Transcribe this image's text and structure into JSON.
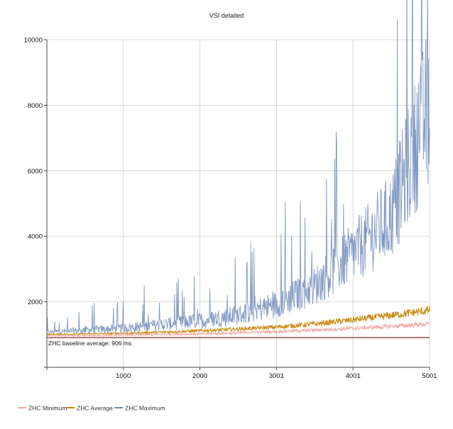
{
  "chart_data": {
    "type": "line",
    "title": "VSI detailed",
    "xlabel": "",
    "ylabel": "",
    "x_ticks": [
      "1000",
      "2000",
      "3001",
      "4001",
      "5001"
    ],
    "x_tick_values": [
      1000,
      2000,
      3001,
      4001,
      5001
    ],
    "y_ticks": [
      "2000",
      "4000",
      "6000",
      "8000",
      "10000"
    ],
    "y_tick_values": [
      2000,
      4000,
      6000,
      8000,
      10000
    ],
    "xlim": [
      1,
      5001
    ],
    "ylim": [
      0,
      10000
    ],
    "grid": true,
    "legend_position": "bottom-left",
    "series": [
      {
        "name": "ZHC Minimum",
        "color": "#f0a8a0",
        "x": [
          1,
          500,
          1000,
          1500,
          2000,
          2500,
          3001,
          3500,
          4001,
          4500,
          5001
        ],
        "values": [
          960,
          960,
          975,
          990,
          1010,
          1040,
          1080,
          1120,
          1170,
          1230,
          1300
        ]
      },
      {
        "name": "ZHC Average",
        "color": "#c8860a",
        "x": [
          1,
          500,
          1000,
          1500,
          2000,
          2500,
          3001,
          3500,
          4001,
          4500,
          5001
        ],
        "values": [
          1000,
          1010,
          1030,
          1060,
          1100,
          1150,
          1210,
          1300,
          1420,
          1550,
          1700
        ]
      },
      {
        "name": "ZHC Maximum",
        "color": "#6a86b8",
        "x": [
          1,
          500,
          1000,
          1500,
          2000,
          2500,
          3001,
          3500,
          4001,
          4500,
          5001
        ],
        "values": [
          1050,
          1100,
          1150,
          1250,
          1350,
          1500,
          1800,
          2300,
          3200,
          4200,
          7300
        ]
      }
    ],
    "baseline": {
      "label": "ZHC baseline average: 906 ms",
      "value": 906,
      "color": "#8b2a3a"
    }
  }
}
